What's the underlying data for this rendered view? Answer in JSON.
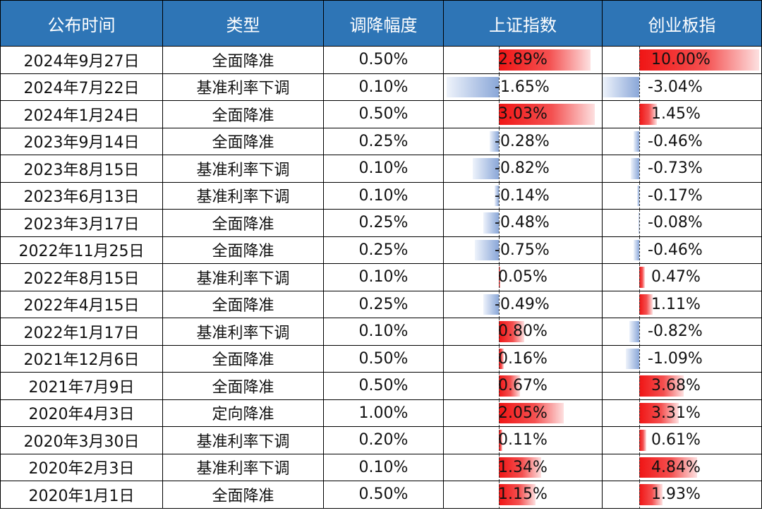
{
  "header": {
    "date": "公布时间",
    "type": "类型",
    "cut": "调降幅度",
    "shanghai": "上证指数",
    "chinext": "创业板指"
  },
  "colors": {
    "header_bg": "#2E75B6",
    "positive": "#F01515",
    "negative": "#8AA7D8"
  },
  "rows": [
    {
      "date": "2024年9月27日",
      "type": "全面降准",
      "cut": "0.50%",
      "sh_text": "2.89%",
      "sh": 2.89,
      "cy_text": "10.00%",
      "cy": 10.0
    },
    {
      "date": "2024年7月22日",
      "type": "基准利率下调",
      "cut": "0.10%",
      "sh_text": "-1.65%",
      "sh": -1.65,
      "cy_text": "-3.04%",
      "cy": -3.04
    },
    {
      "date": "2024年1月24日",
      "type": "全面降准",
      "cut": "0.50%",
      "sh_text": "3.03%",
      "sh": 3.03,
      "cy_text": "1.45%",
      "cy": 1.45
    },
    {
      "date": "2023年9月14日",
      "type": "全面降准",
      "cut": "0.25%",
      "sh_text": "-0.28%",
      "sh": -0.28,
      "cy_text": "-0.46%",
      "cy": -0.46
    },
    {
      "date": "2023年8月15日",
      "type": "基准利率下调",
      "cut": "0.10%",
      "sh_text": "-0.82%",
      "sh": -0.82,
      "cy_text": "-0.73%",
      "cy": -0.73
    },
    {
      "date": "2023年6月13日",
      "type": "基准利率下调",
      "cut": "0.10%",
      "sh_text": "-0.14%",
      "sh": -0.14,
      "cy_text": "-0.17%",
      "cy": -0.17
    },
    {
      "date": "2023年3月17日",
      "type": "全面降准",
      "cut": "0.25%",
      "sh_text": "-0.48%",
      "sh": -0.48,
      "cy_text": "-0.08%",
      "cy": -0.08
    },
    {
      "date": "2022年11月25日",
      "type": "全面降准",
      "cut": "0.25%",
      "sh_text": "-0.75%",
      "sh": -0.75,
      "cy_text": "-0.46%",
      "cy": -0.46
    },
    {
      "date": "2022年8月15日",
      "type": "基准利率下调",
      "cut": "0.10%",
      "sh_text": "0.05%",
      "sh": 0.05,
      "cy_text": "0.47%",
      "cy": 0.47
    },
    {
      "date": "2022年4月15日",
      "type": "全面降准",
      "cut": "0.25%",
      "sh_text": "-0.49%",
      "sh": -0.49,
      "cy_text": "1.11%",
      "cy": 1.11
    },
    {
      "date": "2022年1月17日",
      "type": "基准利率下调",
      "cut": "0.10%",
      "sh_text": "0.80%",
      "sh": 0.8,
      "cy_text": "-0.82%",
      "cy": -0.82
    },
    {
      "date": "2021年12月6日",
      "type": "全面降准",
      "cut": "0.50%",
      "sh_text": "0.16%",
      "sh": 0.16,
      "cy_text": "-1.09%",
      "cy": -1.09
    },
    {
      "date": "2021年7月9日",
      "type": "全面降准",
      "cut": "0.50%",
      "sh_text": "0.67%",
      "sh": 0.67,
      "cy_text": "3.68%",
      "cy": 3.68
    },
    {
      "date": "2020年4月3日",
      "type": "定向降准",
      "cut": "1.00%",
      "sh_text": "2.05%",
      "sh": 2.05,
      "cy_text": "3.31%",
      "cy": 3.31
    },
    {
      "date": "2020年3月30日",
      "type": "基准利率下调",
      "cut": "0.20%",
      "sh_text": "0.11%",
      "sh": 0.11,
      "cy_text": "0.61%",
      "cy": 0.61
    },
    {
      "date": "2020年2月3日",
      "type": "基准利率下调",
      "cut": "0.10%",
      "sh_text": "1.34%",
      "sh": 1.34,
      "cy_text": "4.84%",
      "cy": 4.84
    },
    {
      "date": "2020年1月1日",
      "type": "全面降准",
      "cut": "0.50%",
      "sh_text": "1.15%",
      "sh": 1.15,
      "cy_text": "1.93%",
      "cy": 1.93
    }
  ]
}
